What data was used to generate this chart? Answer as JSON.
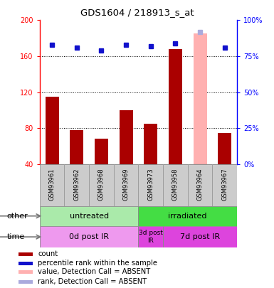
{
  "title": "GDS1604 / 218913_s_at",
  "samples": [
    "GSM93961",
    "GSM93962",
    "GSM93968",
    "GSM93969",
    "GSM93973",
    "GSM93958",
    "GSM93964",
    "GSM93967"
  ],
  "counts": [
    115,
    78,
    68,
    100,
    85,
    168,
    null,
    75
  ],
  "absent_counts": [
    null,
    null,
    null,
    null,
    null,
    null,
    185,
    null
  ],
  "ranks": [
    83,
    81,
    79,
    83,
    82,
    84,
    null,
    81
  ],
  "absent_ranks": [
    null,
    null,
    null,
    null,
    null,
    null,
    92,
    null
  ],
  "ylim_left": [
    40,
    200
  ],
  "ylim_right": [
    0,
    100
  ],
  "yticks_left": [
    40,
    80,
    120,
    160,
    200
  ],
  "yticks_right": [
    0,
    25,
    50,
    75,
    100
  ],
  "bar_color": "#aa0000",
  "bar_absent_color": "#ffb0b0",
  "rank_color": "#1111cc",
  "rank_absent_color": "#aaaadd",
  "other_groups": [
    {
      "label": "untreated",
      "start": 0,
      "end": 4,
      "color": "#aaeaaa"
    },
    {
      "label": "irradiated",
      "start": 4,
      "end": 8,
      "color": "#44dd44"
    }
  ],
  "time_groups": [
    {
      "label": "0d post IR",
      "start": 0,
      "end": 4,
      "color": "#ee99ee"
    },
    {
      "label": "3d post\nIR",
      "start": 4,
      "end": 5,
      "color": "#dd44dd"
    },
    {
      "label": "7d post IR",
      "start": 5,
      "end": 8,
      "color": "#dd44dd"
    }
  ],
  "legend_items": [
    {
      "label": "count",
      "color": "#aa0000"
    },
    {
      "label": "percentile rank within the sample",
      "color": "#1111cc"
    },
    {
      "label": "value, Detection Call = ABSENT",
      "color": "#ffb0b0"
    },
    {
      "label": "rank, Detection Call = ABSENT",
      "color": "#aaaadd"
    }
  ],
  "xlabel_other": "other",
  "xlabel_time": "time",
  "bg_color": "#cccccc",
  "chart_bg": "#ffffff",
  "rank_marker_size": 5
}
